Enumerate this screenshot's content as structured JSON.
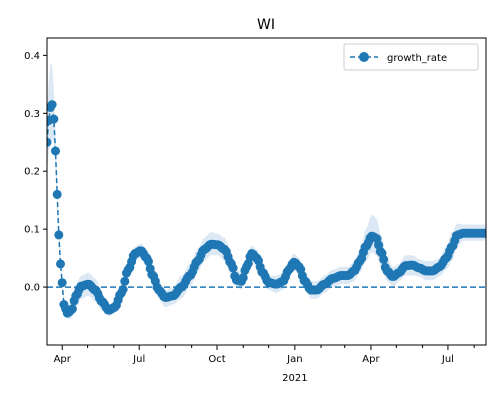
{
  "chart_data": {
    "type": "line",
    "title": "WI",
    "xlabel": "",
    "ylabel": "",
    "x_range": [
      "2020-03-14",
      "2021-08-15"
    ],
    "ylim": [
      -0.1,
      0.43
    ],
    "grid": false,
    "legend_position": "top-right",
    "x_ticks": [
      {
        "date": "2020-04-01",
        "label": "Apr"
      },
      {
        "date": "2020-07-01",
        "label": "Jul"
      },
      {
        "date": "2020-10-01",
        "label": "Oct"
      },
      {
        "date": "2021-01-01",
        "label": "Jan"
      },
      {
        "date": "2021-04-01",
        "label": "Apr"
      },
      {
        "date": "2021-07-01",
        "label": "Jul"
      }
    ],
    "x_minor_ticks": [
      "2020-05-01",
      "2020-06-01",
      "2020-08-01",
      "2020-09-01",
      "2020-11-01",
      "2020-12-01",
      "2021-02-01",
      "2021-03-01",
      "2021-05-01",
      "2021-06-01",
      "2021-08-01"
    ],
    "x_year_label": "2021",
    "y_ticks": [
      0.0,
      0.1,
      0.2,
      0.3,
      0.4
    ],
    "y_tick_labels": [
      "0.0",
      "0.1",
      "0.2",
      "0.3",
      "0.4"
    ],
    "reference_line": {
      "y": 0.0,
      "style": "dashed"
    },
    "series": [
      {
        "name": "growth_rate",
        "color": "#1f77b4",
        "band_color": "#dce9f5",
        "points": [
          {
            "date": "2020-03-14",
            "y": 0.25,
            "lo": 0.2,
            "hi": 0.3
          },
          {
            "date": "2020-03-17",
            "y": 0.3,
            "lo": 0.24,
            "hi": 0.37
          },
          {
            "date": "2020-03-19",
            "y": 0.32,
            "lo": 0.25,
            "hi": 0.4
          },
          {
            "date": "2020-03-21",
            "y": 0.31,
            "lo": 0.26,
            "hi": 0.37
          },
          {
            "date": "2020-03-23",
            "y": 0.27,
            "lo": 0.24,
            "hi": 0.31
          },
          {
            "date": "2020-03-25",
            "y": 0.2,
            "lo": 0.18,
            "hi": 0.22
          },
          {
            "date": "2020-03-27",
            "y": 0.12,
            "lo": 0.1,
            "hi": 0.14
          },
          {
            "date": "2020-03-29",
            "y": 0.06,
            "lo": 0.05,
            "hi": 0.08
          },
          {
            "date": "2020-03-31",
            "y": 0.02,
            "lo": 0.01,
            "hi": 0.03
          },
          {
            "date": "2020-04-03",
            "y": -0.03,
            "lo": -0.04,
            "hi": -0.02
          },
          {
            "date": "2020-04-07",
            "y": -0.045,
            "lo": -0.055,
            "hi": -0.035
          },
          {
            "date": "2020-04-12",
            "y": -0.04,
            "lo": -0.055,
            "hi": -0.025
          },
          {
            "date": "2020-04-17",
            "y": -0.015,
            "lo": -0.035,
            "hi": 0.005
          },
          {
            "date": "2020-04-24",
            "y": 0.002,
            "lo": -0.02,
            "hi": 0.02
          },
          {
            "date": "2020-05-02",
            "y": 0.005,
            "lo": -0.015,
            "hi": 0.025
          },
          {
            "date": "2020-05-10",
            "y": -0.005,
            "lo": -0.025,
            "hi": 0.015
          },
          {
            "date": "2020-05-18",
            "y": -0.025,
            "lo": -0.04,
            "hi": -0.01
          },
          {
            "date": "2020-05-26",
            "y": -0.04,
            "lo": -0.05,
            "hi": -0.03
          },
          {
            "date": "2020-06-02",
            "y": -0.035,
            "lo": -0.045,
            "hi": -0.025
          },
          {
            "date": "2020-06-10",
            "y": -0.01,
            "lo": -0.025,
            "hi": 0.005
          },
          {
            "date": "2020-06-18",
            "y": 0.03,
            "lo": 0.015,
            "hi": 0.045
          },
          {
            "date": "2020-06-26",
            "y": 0.058,
            "lo": 0.045,
            "hi": 0.07
          },
          {
            "date": "2020-07-03",
            "y": 0.063,
            "lo": 0.05,
            "hi": 0.075
          },
          {
            "date": "2020-07-10",
            "y": 0.05,
            "lo": 0.035,
            "hi": 0.065
          },
          {
            "date": "2020-07-17",
            "y": 0.02,
            "lo": 0.005,
            "hi": 0.035
          },
          {
            "date": "2020-07-24",
            "y": -0.005,
            "lo": -0.02,
            "hi": 0.01
          },
          {
            "date": "2020-08-01",
            "y": -0.018,
            "lo": -0.035,
            "hi": -0.005
          },
          {
            "date": "2020-08-10",
            "y": -0.015,
            "lo": -0.03,
            "hi": 0.0
          },
          {
            "date": "2020-08-20",
            "y": 0.0,
            "lo": -0.02,
            "hi": 0.02
          },
          {
            "date": "2020-08-30",
            "y": 0.02,
            "lo": 0.0,
            "hi": 0.04
          },
          {
            "date": "2020-09-08",
            "y": 0.045,
            "lo": 0.025,
            "hi": 0.065
          },
          {
            "date": "2020-09-16",
            "y": 0.065,
            "lo": 0.045,
            "hi": 0.085
          },
          {
            "date": "2020-09-24",
            "y": 0.074,
            "lo": 0.055,
            "hi": 0.095
          },
          {
            "date": "2020-10-02",
            "y": 0.073,
            "lo": 0.055,
            "hi": 0.092
          },
          {
            "date": "2020-10-10",
            "y": 0.065,
            "lo": 0.045,
            "hi": 0.085
          },
          {
            "date": "2020-10-18",
            "y": 0.04,
            "lo": 0.02,
            "hi": 0.06
          },
          {
            "date": "2020-10-24",
            "y": 0.012,
            "lo": 0.0,
            "hi": 0.03
          },
          {
            "date": "2020-10-30",
            "y": 0.01,
            "lo": -0.005,
            "hi": 0.025
          },
          {
            "date": "2020-11-05",
            "y": 0.035,
            "lo": 0.02,
            "hi": 0.05
          },
          {
            "date": "2020-11-11",
            "y": 0.058,
            "lo": 0.045,
            "hi": 0.072
          },
          {
            "date": "2020-11-17",
            "y": 0.05,
            "lo": 0.035,
            "hi": 0.065
          },
          {
            "date": "2020-11-24",
            "y": 0.025,
            "lo": 0.01,
            "hi": 0.04
          },
          {
            "date": "2020-12-01",
            "y": 0.008,
            "lo": -0.005,
            "hi": 0.02
          },
          {
            "date": "2020-12-10",
            "y": 0.005,
            "lo": -0.01,
            "hi": 0.02
          },
          {
            "date": "2020-12-18",
            "y": 0.01,
            "lo": -0.005,
            "hi": 0.025
          },
          {
            "date": "2020-12-25",
            "y": 0.03,
            "lo": 0.015,
            "hi": 0.045
          },
          {
            "date": "2020-12-31",
            "y": 0.043,
            "lo": 0.03,
            "hi": 0.058
          },
          {
            "date": "2021-01-06",
            "y": 0.035,
            "lo": 0.02,
            "hi": 0.05
          },
          {
            "date": "2021-01-13",
            "y": 0.01,
            "lo": -0.005,
            "hi": 0.025
          },
          {
            "date": "2021-01-20",
            "y": -0.005,
            "lo": -0.02,
            "hi": 0.01
          },
          {
            "date": "2021-01-27",
            "y": -0.005,
            "lo": -0.02,
            "hi": 0.01
          },
          {
            "date": "2021-02-05",
            "y": 0.005,
            "lo": -0.01,
            "hi": 0.02
          },
          {
            "date": "2021-02-15",
            "y": 0.015,
            "lo": 0.0,
            "hi": 0.03
          },
          {
            "date": "2021-02-25",
            "y": 0.02,
            "lo": 0.005,
            "hi": 0.035
          },
          {
            "date": "2021-03-05",
            "y": 0.02,
            "lo": 0.005,
            "hi": 0.035
          },
          {
            "date": "2021-03-12",
            "y": 0.028,
            "lo": 0.01,
            "hi": 0.045
          },
          {
            "date": "2021-03-19",
            "y": 0.045,
            "lo": 0.025,
            "hi": 0.065
          },
          {
            "date": "2021-03-26",
            "y": 0.07,
            "lo": 0.045,
            "hi": 0.1
          },
          {
            "date": "2021-04-02",
            "y": 0.088,
            "lo": 0.06,
            "hi": 0.125
          },
          {
            "date": "2021-04-07",
            "y": 0.085,
            "lo": 0.055,
            "hi": 0.12
          },
          {
            "date": "2021-04-13",
            "y": 0.06,
            "lo": 0.035,
            "hi": 0.09
          },
          {
            "date": "2021-04-20",
            "y": 0.028,
            "lo": 0.01,
            "hi": 0.05
          },
          {
            "date": "2021-04-27",
            "y": 0.018,
            "lo": 0.0,
            "hi": 0.035
          },
          {
            "date": "2021-05-04",
            "y": 0.025,
            "lo": 0.01,
            "hi": 0.04
          },
          {
            "date": "2021-05-12",
            "y": 0.037,
            "lo": 0.02,
            "hi": 0.055
          },
          {
            "date": "2021-05-20",
            "y": 0.038,
            "lo": 0.02,
            "hi": 0.055
          },
          {
            "date": "2021-05-28",
            "y": 0.033,
            "lo": 0.018,
            "hi": 0.048
          },
          {
            "date": "2021-06-05",
            "y": 0.028,
            "lo": 0.012,
            "hi": 0.045
          },
          {
            "date": "2021-06-13",
            "y": 0.028,
            "lo": 0.012,
            "hi": 0.045
          },
          {
            "date": "2021-06-21",
            "y": 0.035,
            "lo": 0.018,
            "hi": 0.05
          },
          {
            "date": "2021-06-29",
            "y": 0.05,
            "lo": 0.03,
            "hi": 0.07
          },
          {
            "date": "2021-07-06",
            "y": 0.07,
            "lo": 0.045,
            "hi": 0.095
          },
          {
            "date": "2021-07-12",
            "y": 0.09,
            "lo": 0.07,
            "hi": 0.11
          },
          {
            "date": "2021-07-20",
            "y": 0.093,
            "lo": 0.08,
            "hi": 0.108
          },
          {
            "date": "2021-08-15",
            "y": 0.093,
            "lo": 0.08,
            "hi": 0.108
          }
        ]
      }
    ]
  }
}
